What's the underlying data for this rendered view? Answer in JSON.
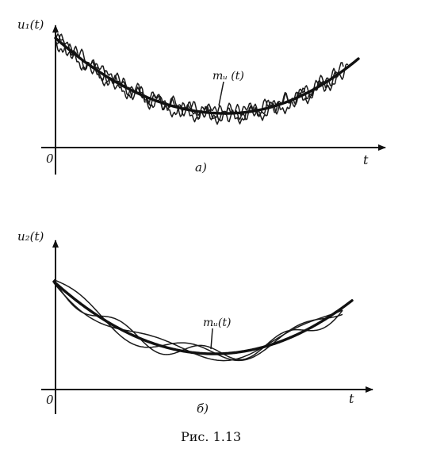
{
  "panel_a": {
    "y_label": "u₁(t)",
    "origin": "0",
    "t_label": "t",
    "mean_label": "mᵤ (t)",
    "sub_label": "а)"
  },
  "panel_b": {
    "y_label": "u₂(t)",
    "origin": "0",
    "t_label": "t",
    "mean_label": "mᵤ(t)",
    "sub_label": "б)"
  },
  "caption": "Рис. 1.13",
  "colors": {
    "ink": "#111111",
    "background": "#ffffff"
  }
}
